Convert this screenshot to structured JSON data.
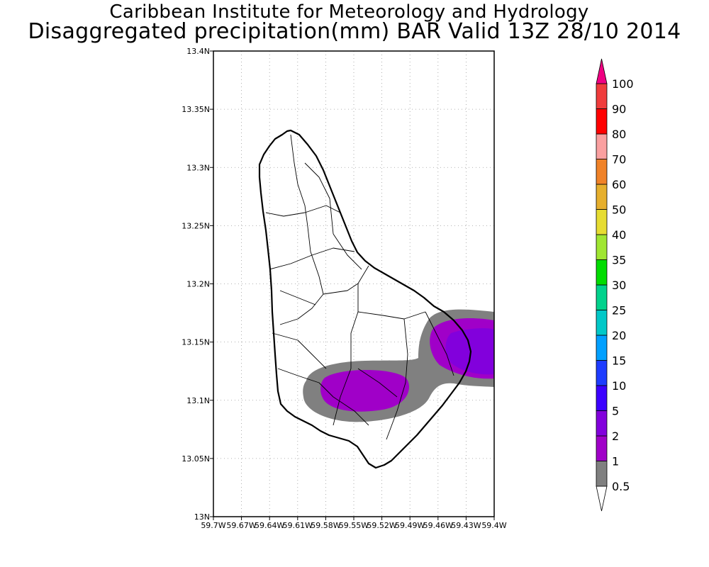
{
  "header": {
    "title": "Caribbean Institute for Meteorology and Hydrology",
    "subtitle": "Disaggregated precipitation(mm) BAR Valid 13Z 28/10 2014"
  },
  "map": {
    "lon_range": [
      -59.7,
      -59.4
    ],
    "lat_range": [
      13.0,
      13.4
    ],
    "lat_ticks": [
      {
        "value": 13.4,
        "label": "13.4N"
      },
      {
        "value": 13.35,
        "label": "13.35N"
      },
      {
        "value": 13.3,
        "label": "13.3N"
      },
      {
        "value": 13.25,
        "label": "13.25N"
      },
      {
        "value": 13.2,
        "label": "13.2N"
      },
      {
        "value": 13.15,
        "label": "13.15N"
      },
      {
        "value": 13.1,
        "label": "13.1N"
      },
      {
        "value": 13.05,
        "label": "13.05N"
      },
      {
        "value": 13.0,
        "label": "13N"
      }
    ],
    "lon_ticks": [
      {
        "value": -59.7,
        "label": "59.7W"
      },
      {
        "value": -59.67,
        "label": "59.67W"
      },
      {
        "value": -59.64,
        "label": "59.64W"
      },
      {
        "value": -59.61,
        "label": "59.61W"
      },
      {
        "value": -59.58,
        "label": "59.58W"
      },
      {
        "value": -59.55,
        "label": "59.55W"
      },
      {
        "value": -59.52,
        "label": "59.52W"
      },
      {
        "value": -59.49,
        "label": "59.49W"
      },
      {
        "value": -59.46,
        "label": "59.46W"
      },
      {
        "value": -59.43,
        "label": "59.43W"
      },
      {
        "value": -59.4,
        "label": "59.4W"
      }
    ],
    "grid": true,
    "colors": {
      "grey_band": "#808080",
      "purple_band": "#a000c8",
      "blue_violet_band": "#8200dc"
    }
  },
  "colorbar": {
    "levels": [
      {
        "label": "0.5",
        "color": "#ffffff"
      },
      {
        "label": "1",
        "color": "#808080"
      },
      {
        "label": "2",
        "color": "#a000c8"
      },
      {
        "label": "5",
        "color": "#8200dc"
      },
      {
        "label": "10",
        "color": "#3c00ff"
      },
      {
        "label": "15",
        "color": "#1e3cff"
      },
      {
        "label": "20",
        "color": "#00a0ff"
      },
      {
        "label": "25",
        "color": "#00c8c8"
      },
      {
        "label": "30",
        "color": "#00d28c"
      },
      {
        "label": "35",
        "color": "#00dc00"
      },
      {
        "label": "40",
        "color": "#a0e632"
      },
      {
        "label": "50",
        "color": "#e6dc32"
      },
      {
        "label": "60",
        "color": "#e6af2d"
      },
      {
        "label": "70",
        "color": "#f08228"
      },
      {
        "label": "80",
        "color": "#faa0a0"
      },
      {
        "label": "90",
        "color": "#ff0000"
      },
      {
        "label": "100",
        "color": "#f03c3c"
      }
    ],
    "top_triangle_color": "#f00082"
  }
}
